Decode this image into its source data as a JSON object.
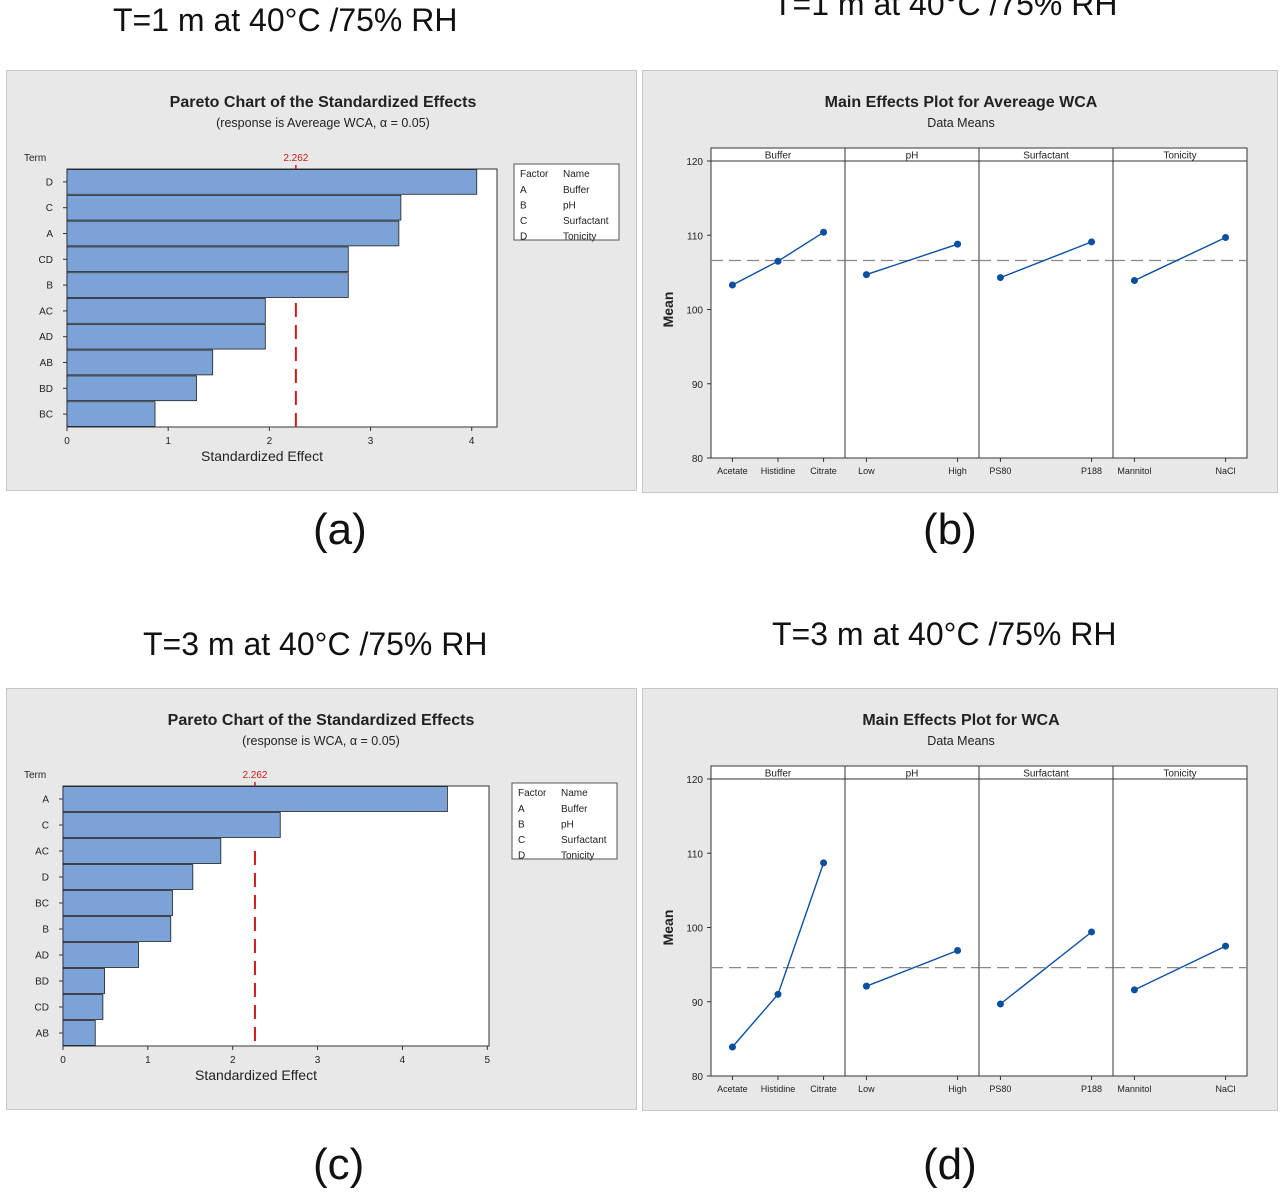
{
  "headers": {
    "a": "T=1 m at 40°C /75% RH",
    "b": "T=1 m at 40°C /75% RH",
    "c": "T=3 m at 40°C /75% RH",
    "d": "T=3 m at 40°C /75% RH"
  },
  "captions": {
    "a": "(a)",
    "b": "(b)",
    "c": "(c)",
    "d": "(d)"
  },
  "chart_data": [
    {
      "id": "a",
      "type": "bar",
      "orientation": "horizontal",
      "title": "Pareto Chart of the Standardized Effects",
      "subtitle": "(response is Avereage WCA, α = 0.05)",
      "ylabel": "Term",
      "xlabel": "Standardized Effect",
      "categories": [
        "D",
        "C",
        "A",
        "CD",
        "B",
        "AC",
        "AD",
        "AB",
        "BD",
        "BC"
      ],
      "values": [
        4.05,
        3.3,
        3.28,
        2.78,
        2.78,
        1.96,
        1.96,
        1.44,
        1.28,
        0.87
      ],
      "xlim": [
        0,
        4.25
      ],
      "xticks": [
        "0",
        "1",
        "2",
        "3",
        "4"
      ],
      "reference_value": 2.262,
      "reference_label": "2.262",
      "bar_color": "#7ba3d8",
      "ref_color": "#cc1b1b",
      "legend": {
        "headers": [
          "Factor",
          "Name"
        ],
        "rows": [
          [
            "A",
            "Buffer"
          ],
          [
            "B",
            "pH"
          ],
          [
            "C",
            "Surfactant"
          ],
          [
            "D",
            "Tonicity"
          ]
        ]
      }
    },
    {
      "id": "b",
      "type": "line",
      "title": "Main Effects Plot for Avereage WCA",
      "subtitle": "Data Means",
      "ylabel": "Mean",
      "ylim": [
        80,
        120
      ],
      "yticks": [
        "80",
        "90",
        "100",
        "110",
        "120"
      ],
      "grand_mean": 106.6,
      "line_color": "#0b4fa0",
      "panels": [
        {
          "name": "Buffer",
          "levels": [
            "Acetate",
            "Histidine",
            "Citrate"
          ],
          "values": [
            103.3,
            106.5,
            110.4
          ]
        },
        {
          "name": "pH",
          "levels": [
            "Low",
            "High"
          ],
          "values": [
            104.7,
            108.8
          ]
        },
        {
          "name": "Surfactant",
          "levels": [
            "PS80",
            "P188"
          ],
          "values": [
            104.3,
            109.1
          ]
        },
        {
          "name": "Tonicity",
          "levels": [
            "Mannitol",
            "NaCl"
          ],
          "values": [
            103.9,
            109.7
          ]
        }
      ]
    },
    {
      "id": "c",
      "type": "bar",
      "orientation": "horizontal",
      "title": "Pareto Chart of the Standardized Effects",
      "subtitle": "(response is WCA, α = 0.05)",
      "ylabel": "Term",
      "xlabel": "Standardized Effect",
      "categories": [
        "A",
        "C",
        "AC",
        "D",
        "BC",
        "B",
        "AD",
        "BD",
        "CD",
        "AB"
      ],
      "values": [
        4.53,
        2.56,
        1.86,
        1.53,
        1.29,
        1.27,
        0.89,
        0.49,
        0.47,
        0.38
      ],
      "xlim": [
        0,
        5.02
      ],
      "xticks": [
        "0",
        "1",
        "2",
        "3",
        "4",
        "5"
      ],
      "reference_value": 2.262,
      "reference_label": "2.262",
      "bar_color": "#7ba3d8",
      "ref_color": "#cc1b1b",
      "legend": {
        "headers": [
          "Factor",
          "Name"
        ],
        "rows": [
          [
            "A",
            "Buffer"
          ],
          [
            "B",
            "pH"
          ],
          [
            "C",
            "Surfactant"
          ],
          [
            "D",
            "Tonicity"
          ]
        ]
      }
    },
    {
      "id": "d",
      "type": "line",
      "title": "Main Effects Plot for WCA",
      "subtitle": "Data Means",
      "ylabel": "Mean",
      "ylim": [
        80,
        120
      ],
      "yticks": [
        "80",
        "90",
        "100",
        "110",
        "120"
      ],
      "grand_mean": 94.6,
      "line_color": "#0b4fa0",
      "panels": [
        {
          "name": "Buffer",
          "levels": [
            "Acetate",
            "Histidine",
            "Citrate"
          ],
          "values": [
            83.9,
            91.0,
            108.7
          ]
        },
        {
          "name": "pH",
          "levels": [
            "Low",
            "High"
          ],
          "values": [
            92.1,
            96.9
          ]
        },
        {
          "name": "Surfactant",
          "levels": [
            "PS80",
            "P188"
          ],
          "values": [
            89.7,
            99.4
          ]
        },
        {
          "name": "Tonicity",
          "levels": [
            "Mannitol",
            "NaCl"
          ],
          "values": [
            91.6,
            97.5
          ]
        }
      ]
    }
  ]
}
